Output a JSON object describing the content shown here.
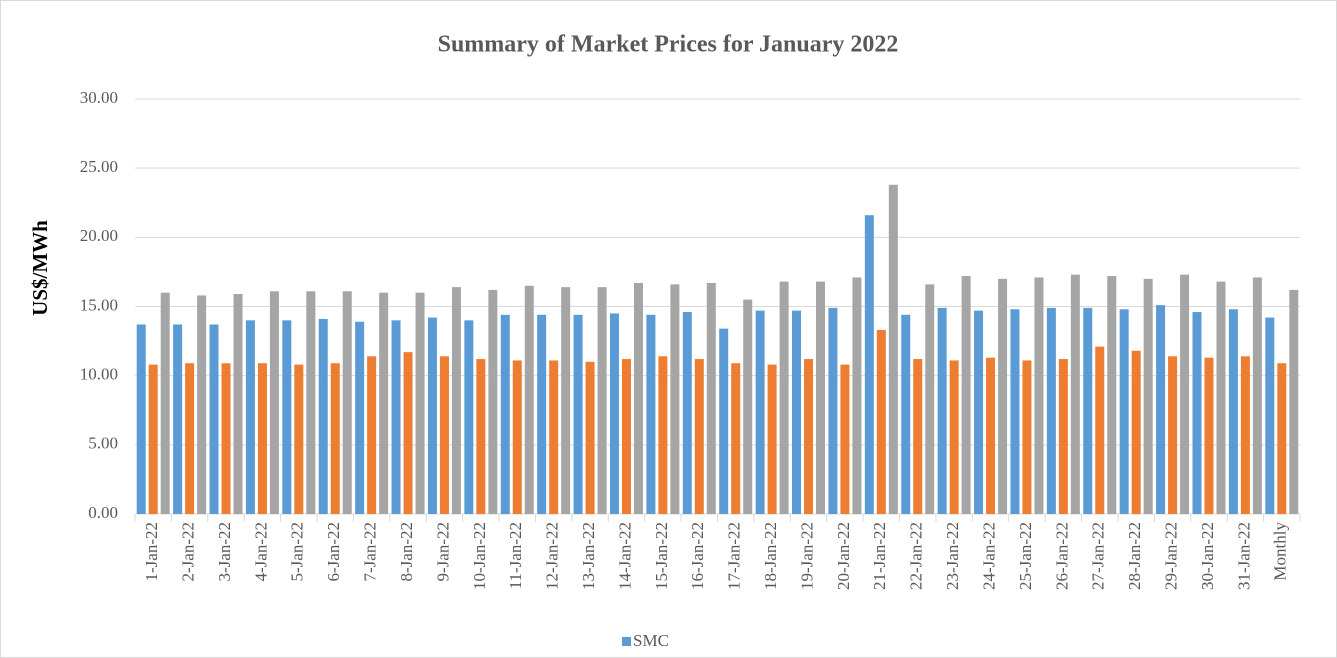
{
  "chart_data": {
    "type": "bar",
    "title": "Summary of Market Prices for January 2022",
    "y_label": "US$/MWh",
    "categories": [
      "1-Jan-22",
      "2-Jan-22",
      "3-Jan-22",
      "4-Jan-22",
      "5-Jan-22",
      "6-Jan-22",
      "7-Jan-22",
      "8-Jan-22",
      "9-Jan-22",
      "10-Jan-22",
      "11-Jan-22",
      "12-Jan-22",
      "13-Jan-22",
      "14-Jan-22",
      "15-Jan-22",
      "16-Jan-22",
      "17-Jan-22",
      "18-Jan-22",
      "19-Jan-22",
      "20-Jan-22",
      "21-Jan-22",
      "22-Jan-22",
      "23-Jan-22",
      "24-Jan-22",
      "25-Jan-22",
      "26-Jan-22",
      "27-Jan-22",
      "28-Jan-22",
      "29-Jan-22",
      "30-Jan-22",
      "31-Jan-22",
      "Monthly"
    ],
    "series": [
      {
        "name": "SMC",
        "color": "#5b9bd5",
        "values": [
          13.7,
          13.7,
          13.7,
          14.0,
          14.0,
          14.1,
          13.9,
          14.0,
          14.2,
          14.0,
          14.4,
          14.4,
          14.4,
          14.5,
          14.4,
          14.6,
          13.4,
          14.7,
          14.7,
          14.9,
          21.6,
          14.4,
          14.9,
          14.7,
          14.8,
          14.9,
          14.9,
          14.8,
          15.1,
          14.6,
          14.8,
          14.2
        ]
      },
      {
        "color": "#ed7d31",
        "values": [
          10.8,
          10.9,
          10.9,
          10.9,
          10.8,
          10.9,
          11.4,
          11.7,
          11.4,
          11.2,
          11.1,
          11.1,
          11.0,
          11.2,
          11.4,
          11.2,
          10.9,
          10.8,
          11.2,
          10.8,
          13.3,
          11.2,
          11.1,
          11.3,
          11.1,
          11.2,
          12.1,
          11.8,
          11.4,
          11.3,
          11.4,
          10.9
        ]
      },
      {
        "color": "#a5a5a5",
        "values": [
          16.0,
          15.8,
          15.9,
          16.1,
          16.1,
          16.1,
          16.0,
          16.0,
          16.4,
          16.2,
          16.5,
          16.4,
          16.4,
          16.7,
          16.6,
          16.7,
          15.5,
          16.8,
          16.8,
          17.1,
          23.8,
          16.6,
          17.2,
          17.0,
          17.1,
          17.3,
          17.2,
          17.0,
          17.3,
          16.8,
          17.1,
          16.2
        ]
      }
    ],
    "ylim": [
      0,
      30
    ],
    "yticks": [
      {
        "value": 0,
        "label": "0.00"
      },
      {
        "value": 5,
        "label": "5.00"
      },
      {
        "value": 10,
        "label": "10.00"
      },
      {
        "value": 15,
        "label": "15.00"
      },
      {
        "value": 20,
        "label": "20.00"
      },
      {
        "value": 25,
        "label": "25.00"
      },
      {
        "value": 30,
        "label": "30.00"
      }
    ],
    "grid": true,
    "legend": "bottom"
  }
}
